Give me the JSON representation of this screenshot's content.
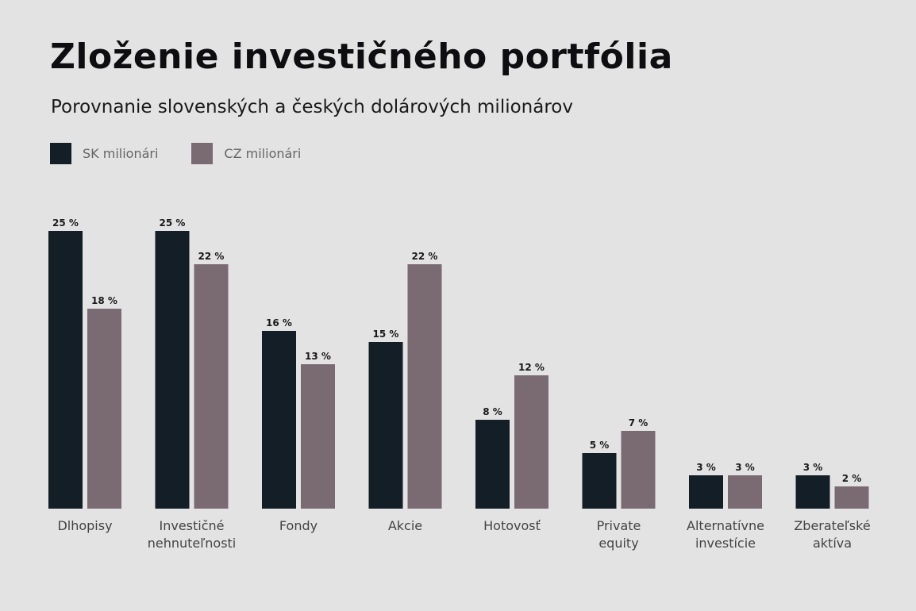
{
  "chart_data": {
    "type": "bar",
    "title": "Zloženie investičného portfólia",
    "subtitle": "Porovnanie slovenských a českých dolárových milionárov",
    "categories": [
      "Dlhopisy",
      "Investičné\nnehnuteľnosti",
      "Fondy",
      "Akcie",
      "Hotovosť",
      "Private\nequity",
      "Alternatívne\ninvestície",
      "Zberateľské\naktíva"
    ],
    "series": [
      {
        "name": "SK milionári",
        "color": "#131e27",
        "values": [
          25,
          25,
          16,
          15,
          8,
          5,
          3,
          3
        ]
      },
      {
        "name": "CZ milionári",
        "color": "#7a6b73",
        "values": [
          18,
          22,
          13,
          22,
          12,
          7,
          3,
          2
        ]
      }
    ],
    "value_suffix": " %",
    "ylim": [
      0,
      25
    ],
    "grid": false,
    "legend": "top-left"
  }
}
